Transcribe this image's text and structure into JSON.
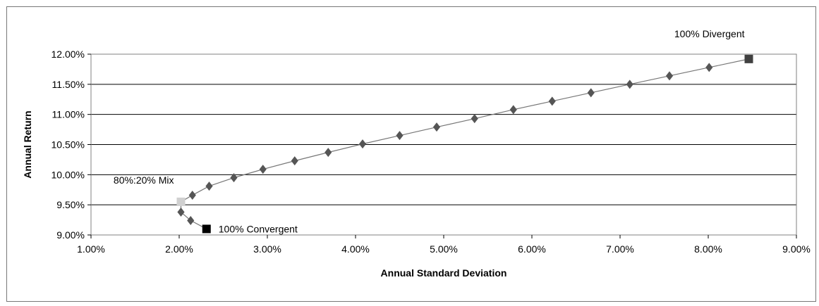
{
  "chart_data": {
    "type": "scatter",
    "title": "",
    "xlabel": "Annual Standard Deviation",
    "ylabel": "Annual Return",
    "xlim": [
      0.01,
      0.09
    ],
    "ylim": [
      0.09,
      0.12
    ],
    "x_ticks": [
      0.01,
      0.02,
      0.03,
      0.04,
      0.05,
      0.06,
      0.07,
      0.08,
      0.09
    ],
    "x_tick_labels": [
      "1.00%",
      "2.00%",
      "3.00%",
      "4.00%",
      "5.00%",
      "6.00%",
      "7.00%",
      "8.00%",
      "9.00%"
    ],
    "y_ticks": [
      0.09,
      0.095,
      0.1,
      0.105,
      0.11,
      0.115,
      0.12
    ],
    "y_tick_labels": [
      "9.00%",
      "9.50%",
      "10.00%",
      "10.50%",
      "11.00%",
      "11.50%",
      "12.00%"
    ],
    "grid": "horizontal",
    "legend": "none",
    "series": [
      {
        "marker": "diamond",
        "color": "#555555",
        "x": [
          0.0213,
          0.0202,
          0.0215,
          0.0234,
          0.0262,
          0.0295,
          0.0331,
          0.0369,
          0.0408,
          0.045,
          0.0492,
          0.0535,
          0.0579,
          0.0623,
          0.0667,
          0.0711,
          0.0756,
          0.0801
        ],
        "y": [
          0.0924,
          0.0938,
          0.0966,
          0.0981,
          0.0995,
          0.1009,
          0.1023,
          0.1037,
          0.1051,
          0.1065,
          0.1079,
          0.1093,
          0.1108,
          0.1122,
          0.1136,
          0.115,
          0.1164,
          0.1178
        ]
      }
    ],
    "special_points": [
      {
        "label": "100% Divergent",
        "x": 0.0846,
        "y": 0.1192,
        "marker": "square",
        "color": "#404040",
        "label_pos": "above-left"
      },
      {
        "label": "80%:20% Mix",
        "x": 0.0202,
        "y": 0.0955,
        "marker": "square",
        "color": "#d0d0d0",
        "label_pos": "above-left"
      },
      {
        "label": "100% Convergent",
        "x": 0.0231,
        "y": 0.091,
        "marker": "square",
        "color": "#000000",
        "label_pos": "right"
      }
    ],
    "curve": {
      "color": "#777777",
      "x": [
        0.0231,
        0.0213,
        0.0202,
        0.0202,
        0.0215,
        0.0234,
        0.0262,
        0.0295,
        0.0331,
        0.0369,
        0.0408,
        0.045,
        0.0492,
        0.0535,
        0.0579,
        0.0623,
        0.0667,
        0.0711,
        0.0756,
        0.0801,
        0.0846
      ],
      "y": [
        0.091,
        0.0924,
        0.0938,
        0.0955,
        0.0966,
        0.0981,
        0.0995,
        0.1009,
        0.1023,
        0.1037,
        0.1051,
        0.1065,
        0.1079,
        0.1093,
        0.1108,
        0.1122,
        0.1136,
        0.115,
        0.1164,
        0.1178,
        0.1192
      ]
    }
  }
}
